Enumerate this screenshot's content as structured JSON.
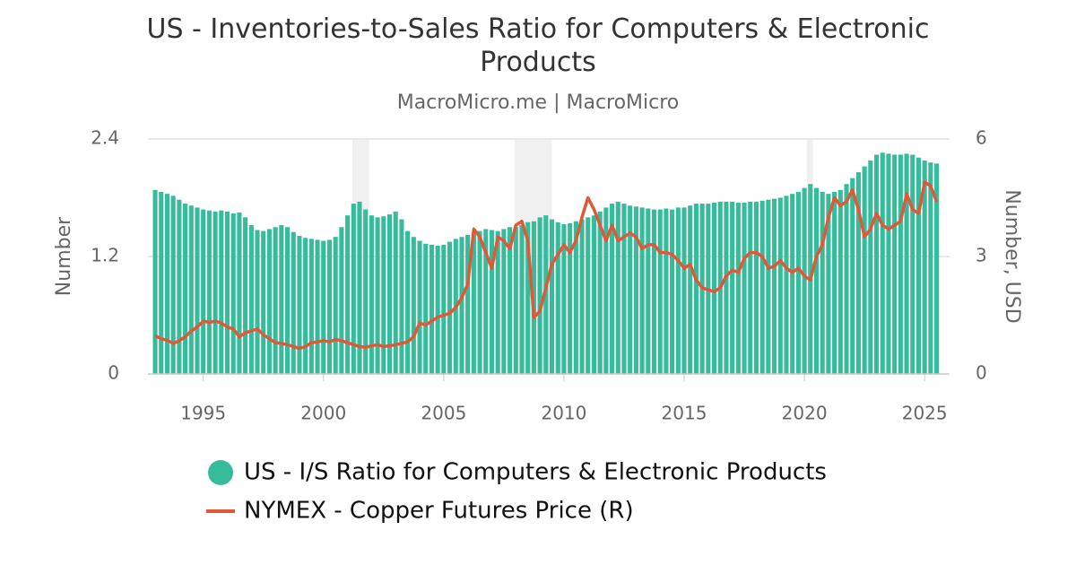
{
  "chart_data": {
    "type": "bar-line",
    "title": "US - Inventories-to-Sales Ratio for Computers & Electronic Products",
    "subtitle": "MacroMicro.me | MacroMicro",
    "y_label": "Number",
    "y2_label": "Number, USD",
    "xlim": [
      1992.7,
      2026.0
    ],
    "xticks": [
      1995,
      2000,
      2005,
      2010,
      2015,
      2020,
      2025
    ],
    "ylim": [
      0,
      2.4
    ],
    "yticks": [
      0,
      1.2,
      2.4
    ],
    "y2lim": [
      0,
      6
    ],
    "y2ticks": [
      0,
      3,
      6
    ],
    "grid": true,
    "shaded_periods": [
      [
        2001.2,
        2001.9
      ],
      [
        2007.95,
        2009.5
      ],
      [
        2020.1,
        2020.35
      ]
    ],
    "shade_color": "#f0f0f0",
    "x": [
      1993,
      1993.25,
      1993.5,
      1993.75,
      1994,
      1994.25,
      1994.5,
      1994.75,
      1995,
      1995.25,
      1995.5,
      1995.75,
      1996,
      1996.25,
      1996.5,
      1996.75,
      1997,
      1997.25,
      1997.5,
      1997.75,
      1998,
      1998.25,
      1998.5,
      1998.75,
      1999,
      1999.25,
      1999.5,
      1999.75,
      2000,
      2000.25,
      2000.5,
      2000.75,
      2001,
      2001.25,
      2001.5,
      2001.75,
      2002,
      2002.25,
      2002.5,
      2002.75,
      2003,
      2003.25,
      2003.5,
      2003.75,
      2004,
      2004.25,
      2004.5,
      2004.75,
      2005,
      2005.25,
      2005.5,
      2005.75,
      2006,
      2006.25,
      2006.5,
      2006.75,
      2007,
      2007.25,
      2007.5,
      2007.75,
      2008,
      2008.25,
      2008.5,
      2008.75,
      2009,
      2009.25,
      2009.5,
      2009.75,
      2010,
      2010.25,
      2010.5,
      2010.75,
      2011,
      2011.25,
      2011.5,
      2011.75,
      2012,
      2012.25,
      2012.5,
      2012.75,
      2013,
      2013.25,
      2013.5,
      2013.75,
      2014,
      2014.25,
      2014.5,
      2014.75,
      2015,
      2015.25,
      2015.5,
      2015.75,
      2016,
      2016.25,
      2016.5,
      2016.75,
      2017,
      2017.25,
      2017.5,
      2017.75,
      2018,
      2018.25,
      2018.5,
      2018.75,
      2019,
      2019.25,
      2019.5,
      2019.75,
      2020,
      2020.25,
      2020.5,
      2020.75,
      2021,
      2021.25,
      2021.5,
      2021.75,
      2022,
      2022.25,
      2022.5,
      2022.75,
      2023,
      2023.25,
      2023.5,
      2023.75,
      2024,
      2024.25,
      2024.5,
      2024.75,
      2025,
      2025.25,
      2025.5
    ],
    "series": [
      {
        "name": "US - I/S Ratio for Computers & Electronic Products",
        "type": "bar",
        "color": "#36bc9b",
        "values": [
          1.88,
          1.86,
          1.84,
          1.82,
          1.78,
          1.74,
          1.72,
          1.7,
          1.68,
          1.67,
          1.66,
          1.67,
          1.66,
          1.64,
          1.65,
          1.6,
          1.52,
          1.47,
          1.46,
          1.48,
          1.5,
          1.52,
          1.5,
          1.45,
          1.41,
          1.39,
          1.38,
          1.37,
          1.36,
          1.37,
          1.4,
          1.5,
          1.62,
          1.74,
          1.76,
          1.68,
          1.62,
          1.6,
          1.61,
          1.63,
          1.66,
          1.58,
          1.46,
          1.4,
          1.36,
          1.33,
          1.32,
          1.31,
          1.32,
          1.35,
          1.38,
          1.4,
          1.42,
          1.44,
          1.46,
          1.48,
          1.47,
          1.46,
          1.48,
          1.5,
          1.5,
          1.52,
          1.55,
          1.56,
          1.6,
          1.62,
          1.58,
          1.55,
          1.53,
          1.54,
          1.56,
          1.58,
          1.6,
          1.62,
          1.66,
          1.7,
          1.74,
          1.76,
          1.74,
          1.72,
          1.71,
          1.7,
          1.69,
          1.68,
          1.68,
          1.69,
          1.68,
          1.7,
          1.7,
          1.72,
          1.74,
          1.74,
          1.74,
          1.75,
          1.76,
          1.76,
          1.76,
          1.75,
          1.75,
          1.76,
          1.76,
          1.77,
          1.78,
          1.79,
          1.8,
          1.82,
          1.84,
          1.86,
          1.9,
          1.94,
          1.9,
          1.86,
          1.84,
          1.86,
          1.88,
          1.94,
          2.0,
          2.06,
          2.12,
          2.18,
          2.24,
          2.26,
          2.25,
          2.24,
          2.24,
          2.25,
          2.24,
          2.21,
          2.18,
          2.16,
          2.15
        ]
      },
      {
        "name": "NYMEX - Copper Futures Price (R)",
        "type": "line",
        "axis": "y2",
        "color": "#e0583a",
        "values": [
          0.98,
          0.9,
          0.86,
          0.78,
          0.85,
          0.95,
          1.1,
          1.2,
          1.35,
          1.32,
          1.35,
          1.3,
          1.2,
          1.15,
          0.95,
          1.05,
          1.1,
          1.15,
          1.0,
          0.9,
          0.8,
          0.78,
          0.75,
          0.7,
          0.65,
          0.7,
          0.8,
          0.82,
          0.85,
          0.82,
          0.88,
          0.85,
          0.8,
          0.75,
          0.7,
          0.68,
          0.72,
          0.75,
          0.7,
          0.72,
          0.75,
          0.78,
          0.82,
          0.95,
          1.3,
          1.25,
          1.35,
          1.45,
          1.5,
          1.55,
          1.7,
          1.95,
          2.3,
          3.7,
          3.5,
          3.1,
          2.7,
          3.5,
          3.4,
          3.2,
          3.8,
          3.9,
          3.4,
          1.45,
          1.6,
          2.2,
          2.8,
          3.05,
          3.3,
          3.1,
          3.4,
          4.0,
          4.5,
          4.2,
          3.8,
          3.4,
          3.8,
          3.4,
          3.5,
          3.6,
          3.5,
          3.2,
          3.3,
          3.3,
          3.1,
          3.1,
          3.05,
          2.9,
          2.7,
          2.8,
          2.4,
          2.2,
          2.15,
          2.1,
          2.2,
          2.5,
          2.65,
          2.6,
          2.95,
          3.1,
          3.1,
          3.0,
          2.7,
          2.75,
          2.9,
          2.7,
          2.6,
          2.7,
          2.5,
          2.4,
          3.0,
          3.3,
          4.0,
          4.5,
          4.3,
          4.4,
          4.7,
          4.2,
          3.5,
          3.7,
          4.1,
          3.8,
          3.7,
          3.8,
          3.9,
          4.6,
          4.2,
          4.1,
          4.9,
          4.8,
          4.4
        ]
      }
    ]
  }
}
